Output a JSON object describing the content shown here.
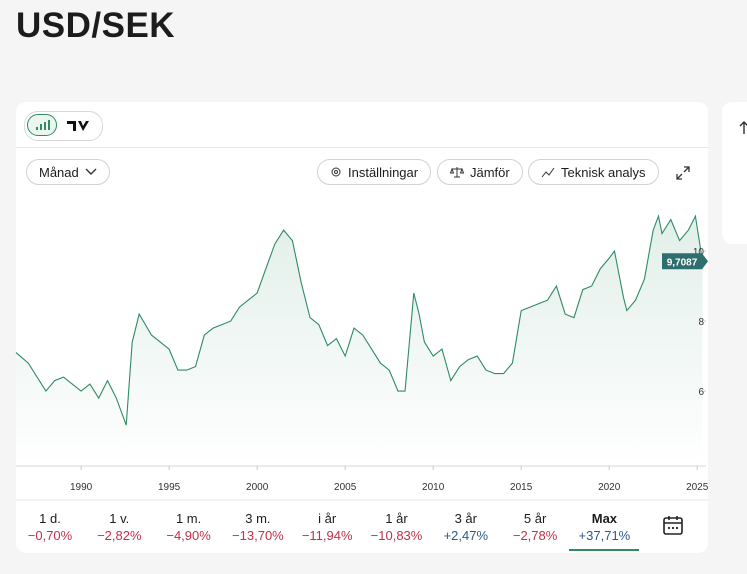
{
  "header": {
    "title": "USD/SEK"
  },
  "toolbar": {
    "interval": "Månad",
    "buttons": [
      "Inställningar",
      "Jämför",
      "Teknisk analys"
    ]
  },
  "chart_data": {
    "type": "line",
    "color": "#2e8b62",
    "x": [
      1986.3,
      1987,
      1988,
      1988.5,
      1989,
      1990,
      1990.5,
      1991,
      1991.5,
      1992,
      1992.56,
      1992.9,
      1993.3,
      1994,
      1995,
      1995.5,
      1996,
      1996.5,
      1997,
      1997.5,
      1998,
      1998.5,
      1999,
      1999.5,
      2000,
      2000.5,
      2001,
      2001.5,
      2002,
      2002.5,
      2003,
      2003.5,
      2004,
      2004.5,
      2005,
      2005.5,
      2006,
      2006.5,
      2007,
      2007.5,
      2008,
      2008.4,
      2008.9,
      2009.2,
      2009.5,
      2010,
      2010.5,
      2011,
      2011.5,
      2012,
      2012.5,
      2013,
      2013.5,
      2014,
      2014.5,
      2015,
      2015.5,
      2016,
      2016.5,
      2017,
      2017.5,
      2018,
      2018.5,
      2019,
      2019.5,
      2020,
      2020.3,
      2020.8,
      2021,
      2021.5,
      2022,
      2022.5,
      2022.8,
      2023,
      2023.5,
      2024,
      2024.5,
      2024.9,
      2025.3
    ],
    "values": [
      7.1,
      6.8,
      6.0,
      6.3,
      6.4,
      6.0,
      6.2,
      5.8,
      6.3,
      5.8,
      5.03,
      7.4,
      8.2,
      7.6,
      7.2,
      6.6,
      6.6,
      6.7,
      7.6,
      7.8,
      7.9,
      8.0,
      8.4,
      8.6,
      8.8,
      9.5,
      10.2,
      10.6,
      10.3,
      9.1,
      8.1,
      7.9,
      7.3,
      7.5,
      7.0,
      7.8,
      7.6,
      7.2,
      6.8,
      6.6,
      6.0,
      6.0,
      8.8,
      8.2,
      7.4,
      7.0,
      7.2,
      6.3,
      6.7,
      6.9,
      7.0,
      6.6,
      6.5,
      6.5,
      6.8,
      8.3,
      8.4,
      8.5,
      8.6,
      9.0,
      8.2,
      8.1,
      8.9,
      9.0,
      9.5,
      9.8,
      10.0,
      8.7,
      8.3,
      8.6,
      9.2,
      10.6,
      11.0,
      10.5,
      10.9,
      10.3,
      10.6,
      11.0,
      9.7087
    ],
    "xlim": [
      1986.3,
      2025.5
    ],
    "ylim": [
      3.86,
      11.46
    ],
    "xticks": [
      1990,
      1995,
      2000,
      2005,
      2010,
      2015,
      2020,
      2025
    ],
    "yticks": [
      6,
      8,
      10
    ],
    "annotations": [
      {
        "value": 9.7087,
        "label": "9,7087"
      }
    ]
  },
  "periods": [
    {
      "label": "1 d.",
      "change": "−0,70%"
    },
    {
      "label": "1 v.",
      "change": "−2,82%"
    },
    {
      "label": "1 m.",
      "change": "−4,90%"
    },
    {
      "label": "3 m.",
      "change": "−13,70%"
    },
    {
      "label": "i år",
      "change": "−11,94%"
    },
    {
      "label": "1 år",
      "change": "−10,83%"
    },
    {
      "label": "3 år",
      "change": "+2,47%"
    },
    {
      "label": "5 år",
      "change": "−2,78%"
    },
    {
      "label": "Max",
      "change": "+37,71%"
    }
  ]
}
